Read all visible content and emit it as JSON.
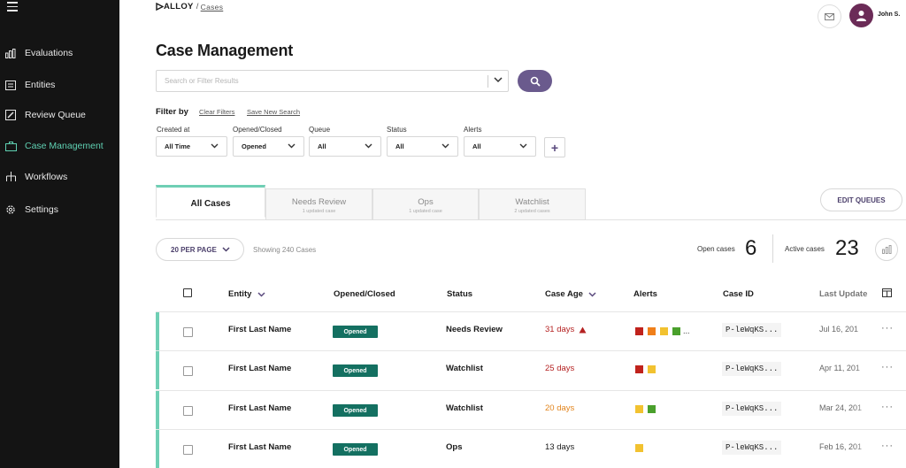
{
  "sidebar": {
    "items": [
      {
        "label": "Evaluations",
        "icon": "bar-chart-icon",
        "active": false
      },
      {
        "label": "Entities",
        "icon": "id-card-icon",
        "active": false
      },
      {
        "label": "Review Queue",
        "icon": "edit-icon",
        "active": false
      },
      {
        "label": "Case Management",
        "icon": "briefcase-icon",
        "active": true
      },
      {
        "label": "Workflows",
        "icon": "sitemap-icon",
        "active": false
      },
      {
        "label": "Settings",
        "icon": "gear-icon",
        "active": false
      }
    ]
  },
  "header": {
    "logo": "ALLOY",
    "breadcrumb_sep": "/",
    "breadcrumb": "Cases",
    "user_name": "John S."
  },
  "page": {
    "title": "Case Management"
  },
  "search": {
    "placeholder": "Search or Filter Results",
    "value": ""
  },
  "filters": {
    "title": "Filter by",
    "clear": "Clear Filters",
    "save": "Save New Search",
    "groups": [
      {
        "label": "Created at",
        "value": "All Time"
      },
      {
        "label": "Opened/Closed",
        "value": "Opened"
      },
      {
        "label": "Queue",
        "value": "All"
      },
      {
        "label": "Status",
        "value": "All"
      },
      {
        "label": "Alerts",
        "value": "All"
      }
    ],
    "add": "+"
  },
  "tabs": [
    {
      "label": "All Cases",
      "sub": ""
    },
    {
      "label": "Needs Review",
      "sub": "1 updated case"
    },
    {
      "label": "Ops",
      "sub": "1 updated case"
    },
    {
      "label": "Watchlist",
      "sub": "2 updated cases"
    }
  ],
  "edit_queues": "EDIT QUEUES",
  "toolbar": {
    "per_page": "20 PER PAGE",
    "showing": "Showing 240 Cases",
    "open_label": "Open cases",
    "open_value": "6",
    "active_label": "Active cases",
    "active_value": "23"
  },
  "table": {
    "headers": {
      "entity": "Entity",
      "opened_closed": "Opened/Closed",
      "status": "Status",
      "case_age": "Case Age",
      "alerts": "Alerts",
      "case_id": "Case ID",
      "last_updated": "Last Update"
    },
    "rows": [
      {
        "entity": "First Last Name",
        "opened": "Opened",
        "status": "Needs Review",
        "age": "31 days",
        "age_color": "#b52222",
        "warning": true,
        "alerts": [
          "#c0221c",
          "#f07f1a",
          "#f2c230",
          "#4aa02c"
        ],
        "more": "...",
        "case_id": "P-leWqKS...",
        "last_updated": "Jul 16, 201"
      },
      {
        "entity": "First Last Name",
        "opened": "Opened",
        "status": "Watchlist",
        "age": "25 days",
        "age_color": "#b52222",
        "warning": false,
        "alerts": [
          "#c0221c",
          "#f2c230"
        ],
        "more": "",
        "case_id": "P-leWqKS...",
        "last_updated": "Apr 11, 201"
      },
      {
        "entity": "First Last Name",
        "opened": "Opened",
        "status": "Watchlist",
        "age": "20 days",
        "age_color": "#e2841c",
        "warning": false,
        "alerts": [
          "#f2c230",
          "#4aa02c"
        ],
        "more": "",
        "case_id": "P-leWqKS...",
        "last_updated": "Mar 24, 201"
      },
      {
        "entity": "First Last Name",
        "opened": "Opened",
        "status": "Ops",
        "age": "13 days",
        "age_color": "#1a1a1a",
        "warning": false,
        "alerts": [
          "#f2c230"
        ],
        "more": "",
        "case_id": "P-leWqKS...",
        "last_updated": "Feb 16, 201"
      }
    ],
    "row_menu": "···"
  }
}
